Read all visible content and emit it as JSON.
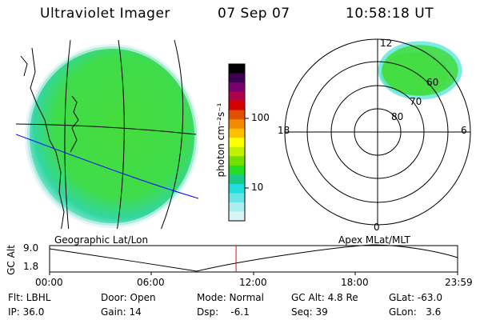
{
  "header": {
    "instrument": "Ultraviolet Imager",
    "date": "07 Sep 07",
    "time": "10:58:18 UT"
  },
  "colorbar": {
    "unit_label": "photon cm⁻²s⁻¹",
    "ticks": [
      "100",
      "10"
    ],
    "scale": "log",
    "colors": [
      "#000000",
      "#3d0050",
      "#7a0070",
      "#b0004a",
      "#d40000",
      "#e05000",
      "#f08a00",
      "#ffc000",
      "#ffff00",
      "#bff000",
      "#6fe000",
      "#22dd22",
      "#18cc88",
      "#22dddd",
      "#66e6e6",
      "#aaeeee",
      "#d8f4f4"
    ]
  },
  "map_panel": {
    "label": "Geographic Lat/Lon",
    "emission_color": "#3fdc3f",
    "rim_color": "#5ee6dc",
    "terminator_color": "#0000ff"
  },
  "polar_panel": {
    "label": "Apex MLat/MLT",
    "mlt_labels": {
      "top": "12",
      "left": "18",
      "right": "6",
      "bottom": "0"
    },
    "lat_labels": [
      "60",
      "70",
      "80"
    ]
  },
  "altitude_plot": {
    "ylabel": "GC Alt",
    "y_ticks": [
      "9.0",
      "1.8"
    ],
    "x_ticks": [
      "00:00",
      "06:00",
      "12:00",
      "18:00",
      "23:59"
    ],
    "marker_color": "#ff0000",
    "current_time_fraction": 0.457
  },
  "footer": {
    "row1": [
      "Flt: LBHL",
      "Door: Open",
      "Mode: Normal",
      "GC Alt: 4.8 Re",
      "GLat: -63.0"
    ],
    "row2": [
      "IP: 36.0",
      "Gain: 14",
      "Dsp:    -6.1",
      "Seq: 39",
      "GLon:   3.6"
    ]
  }
}
